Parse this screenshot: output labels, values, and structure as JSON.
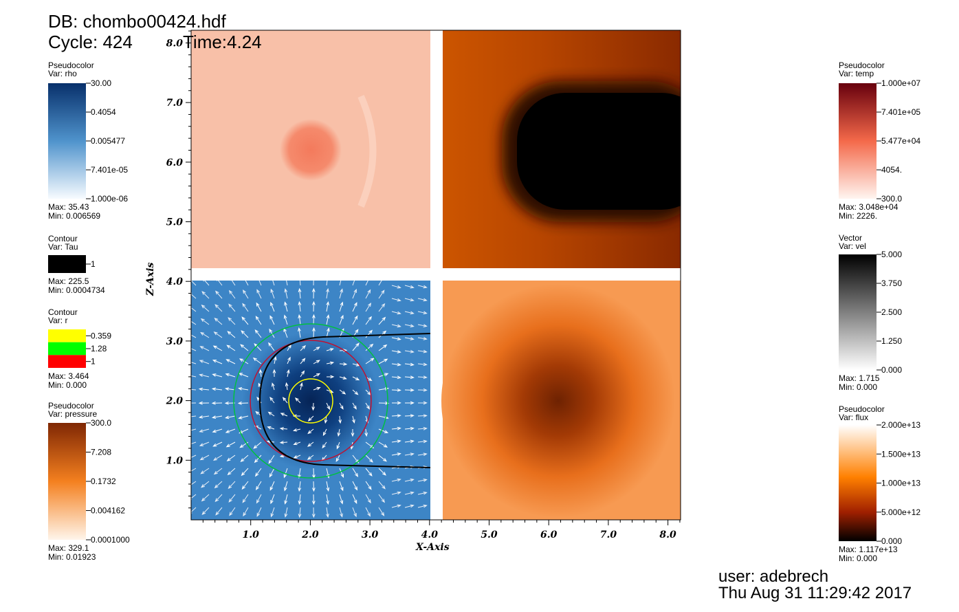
{
  "header": {
    "db": "DB: chombo00424.hdf",
    "cycle": "Cycle: 424",
    "time": "Time:4.24"
  },
  "axes": {
    "x_label": "X-Axis",
    "y_label": "Z-Axis",
    "x_ticks": [
      "1.0",
      "2.0",
      "3.0",
      "4.0",
      "5.0",
      "6.0",
      "7.0",
      "8.0"
    ],
    "y_ticks": [
      "1.0",
      "2.0",
      "3.0",
      "4.0",
      "5.0",
      "6.0",
      "7.0",
      "8.0"
    ]
  },
  "legends": [
    {
      "plot": "Pseudocolor",
      "var": "Var: rho",
      "labels": [
        "30.00",
        "0.4054",
        "0.005477",
        "7.401e-05",
        "1.000e-06"
      ],
      "max": "Max:  35.43",
      "min": "Min:  0.006569"
    },
    {
      "plot": "Contour",
      "var": "Var: Tau",
      "labels": [
        "1"
      ],
      "max": "Max:  225.5",
      "min": "Min:  0.0004734"
    },
    {
      "plot": "Contour",
      "var": "Var: r",
      "labels": [
        "0.359",
        "1.28",
        "1"
      ],
      "max": "Max:  3.464",
      "min": "Min:  0.000"
    },
    {
      "plot": "Pseudocolor",
      "var": "Var: pressure",
      "labels": [
        "300.0",
        "7.208",
        "0.1732",
        "0.004162",
        "0.0001000"
      ],
      "max": "Max:  329.1",
      "min": "Min:  0.01923"
    },
    {
      "plot": "Pseudocolor",
      "var": "Var: temp",
      "labels": [
        "1.000e+07",
        "7.401e+05",
        "5.477e+04",
        "4054.",
        "300.0"
      ],
      "max": "Max:  3.048e+04",
      "min": "Min:  2226."
    },
    {
      "plot": "Vector",
      "var": "Var: vel",
      "labels": [
        "5.000",
        "3.750",
        "2.500",
        "1.250",
        "0.000"
      ],
      "max": "Max:  1.715",
      "min": "Min:  0.000"
    },
    {
      "plot": "Pseudocolor",
      "var": "Var: flux",
      "labels": [
        "2.000e+13",
        "1.500e+13",
        "1.000e+13",
        "5.000e+12",
        "0.000"
      ],
      "max": "Max:  1.117e+13",
      "min": "Min:  0.000"
    }
  ],
  "footer": {
    "user": "user: adebrech",
    "date": "Thu Aug 31 11:29:42 2017"
  }
}
